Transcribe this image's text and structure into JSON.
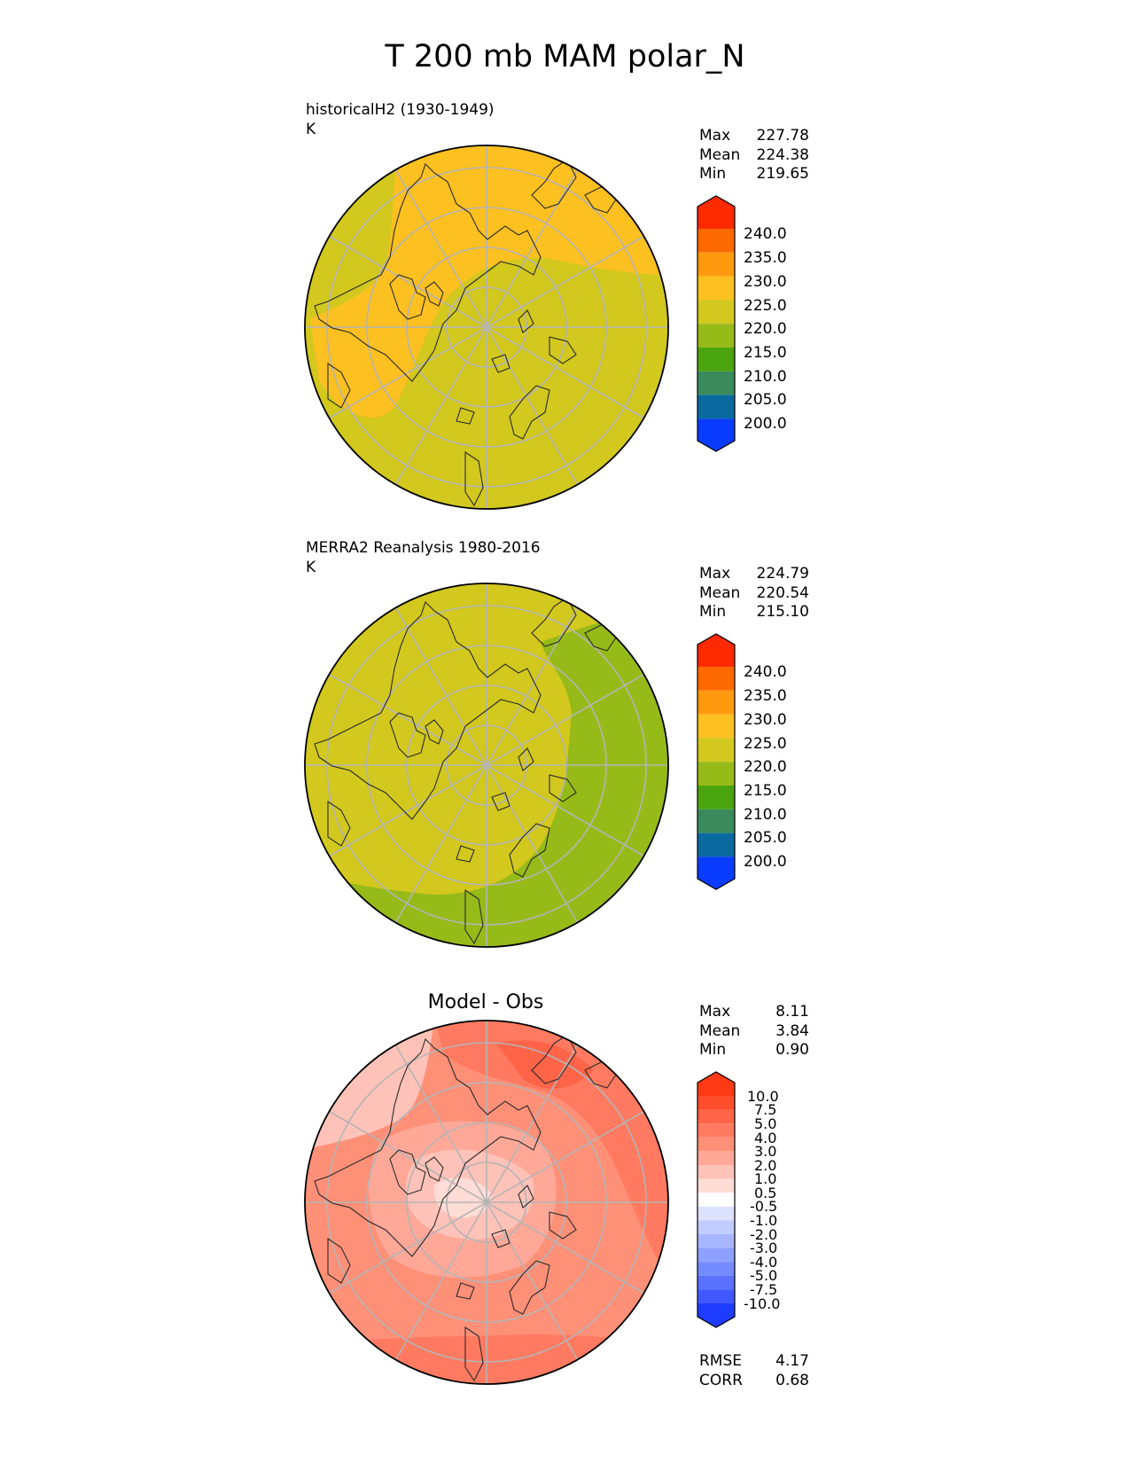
{
  "figure_title": "T 200 mb MAM polar_N",
  "panels": [
    {
      "title_line1": "historicalH2 (1930-1949)",
      "title_line2": "K",
      "stats": [
        {
          "label": "Max",
          "value": "227.78"
        },
        {
          "label": "Mean",
          "value": "224.38"
        },
        {
          "label": "Min",
          "value": "219.65"
        }
      ]
    },
    {
      "title_line1": "MERRA2 Reanalysis 1980-2016",
      "title_line2": "K",
      "stats": [
        {
          "label": "Max",
          "value": "224.79"
        },
        {
          "label": "Mean",
          "value": "220.54"
        },
        {
          "label": "Min",
          "value": "215.10"
        }
      ]
    },
    {
      "title_center": "Model - Obs",
      "stats": [
        {
          "label": "Max",
          "value": "8.11"
        },
        {
          "label": "Mean",
          "value": "3.84"
        },
        {
          "label": "Min",
          "value": "0.90"
        }
      ],
      "metrics": [
        {
          "label": "RMSE",
          "value": "4.17"
        },
        {
          "label": "CORR",
          "value": "0.68"
        }
      ]
    }
  ],
  "colorbar_abs": {
    "ticks": [
      "240.0",
      "235.0",
      "230.0",
      "225.0",
      "220.0",
      "215.0",
      "210.0",
      "205.0",
      "200.0"
    ],
    "colors": [
      "#ff2a00",
      "#ff6a00",
      "#ff9a0f",
      "#fcc020",
      "#d2c81e",
      "#96ba18",
      "#4aa40e",
      "#3a8a5e",
      "#0a6aa0",
      "#0a3cff"
    ]
  },
  "colorbar_diff": {
    "ticks": [
      "10.0",
      "7.5",
      "5.0",
      "4.0",
      "3.0",
      "2.0",
      "1.0",
      "0.5",
      "-0.5",
      "-1.0",
      "-2.0",
      "-3.0",
      "-4.0",
      "-5.0",
      "-7.5",
      "-10.0"
    ],
    "colors": [
      "#ff3a14",
      "#ff4e2c",
      "#ff6448",
      "#ff7a60",
      "#ff9078",
      "#ffa898",
      "#ffc2b8",
      "#ffdcd6",
      "#ffffff",
      "#dce2ff",
      "#c2ccff",
      "#a8b6ff",
      "#8ea0ff",
      "#748aff",
      "#5a72ff",
      "#4058ff",
      "#1e3cff"
    ]
  }
}
